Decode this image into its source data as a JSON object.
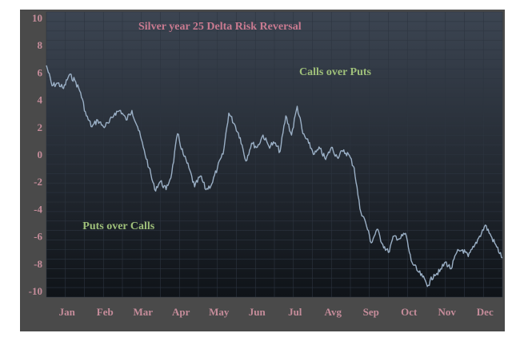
{
  "colors": {
    "frame": "#4a4a4a",
    "plot_top": "#3c4552",
    "plot_bottom": "#0f1318",
    "grid": "#2d3540",
    "series": "#9bb0c6",
    "tick_text": "#c58c9a",
    "title_text": "#c97a90",
    "annotation_text": "#9fc07a"
  },
  "chart_data": {
    "type": "line",
    "title": "Silver year  25 Delta Risk Reversal",
    "xlabel": "",
    "ylabel": "",
    "ylim": [
      -10,
      10
    ],
    "xlim": [
      0,
      12
    ],
    "grid": true,
    "yticks": [
      "10",
      "8",
      "6",
      "4",
      "2",
      "0",
      "-2",
      "-4",
      "-6",
      "-8",
      "-10"
    ],
    "ytick_values": [
      10,
      8,
      6,
      4,
      2,
      0,
      -2,
      -4,
      -6,
      -8,
      -10
    ],
    "xticks": [
      "Jan",
      "Feb",
      "Mar",
      "Apr",
      "May",
      "Jun",
      "Jul",
      "Avg",
      "Sep",
      "Oct",
      "Nov",
      "Dec"
    ],
    "annotations": [
      {
        "text": "Calls over Puts",
        "x": 7.6,
        "y": 5.8
      },
      {
        "text": "Puts over Calls",
        "x": 1.9,
        "y": -5.5
      }
    ],
    "series": [
      {
        "x": [
          0,
          0.15,
          0.3,
          0.45,
          0.6,
          0.75,
          0.9,
          1.05,
          1.2,
          1.35,
          1.5,
          1.65,
          1.8,
          1.95,
          2.1,
          2.25,
          2.4,
          2.55,
          2.7,
          2.85,
          3.0,
          3.15,
          3.3,
          3.45,
          3.6,
          3.75,
          3.9,
          4.05,
          4.2,
          4.35,
          4.5,
          4.65,
          4.8,
          4.95,
          5.1,
          5.25,
          5.4,
          5.55,
          5.7,
          5.85,
          6.0,
          6.15,
          6.3,
          6.45,
          6.6,
          6.75,
          6.9,
          7.05,
          7.2,
          7.35,
          7.5,
          7.65,
          7.8,
          7.95,
          8.1,
          8.25,
          8.4,
          8.55,
          8.7,
          8.85,
          9.0,
          9.15,
          9.3,
          9.45,
          9.6,
          9.75,
          9.9,
          10.05,
          10.2,
          10.35,
          10.5,
          10.65,
          10.8,
          10.95,
          11.1,
          11.25,
          11.4,
          11.55,
          11.7,
          11.85,
          12.0
        ],
        "values": [
          6.5,
          5.0,
          5.2,
          4.8,
          5.8,
          5.4,
          4.5,
          2.8,
          2.0,
          2.5,
          2.0,
          2.3,
          3.0,
          3.2,
          2.5,
          3.2,
          2.0,
          0.5,
          -1.0,
          -2.6,
          -2.0,
          -2.6,
          -1.4,
          1.5,
          0.0,
          -1.0,
          -2.4,
          -1.6,
          -2.6,
          -2.2,
          -1.0,
          0.0,
          3.0,
          2.2,
          1.2,
          -0.5,
          0.8,
          0.5,
          1.4,
          0.6,
          0.8,
          0.2,
          2.8,
          1.4,
          3.5,
          1.5,
          0.8,
          0.0,
          0.4,
          -0.4,
          0.5,
          -0.2,
          0.2,
          0.0,
          -1.0,
          -4.0,
          -5.0,
          -6.5,
          -5.5,
          -6.6,
          -7.2,
          -6.0,
          -6.2,
          -5.8,
          -7.8,
          -8.5,
          -9.0,
          -9.6,
          -8.8,
          -8.6,
          -7.9,
          -8.4,
          -7.2,
          -7.0,
          -7.5,
          -6.8,
          -6.0,
          -5.2,
          -6.0,
          -6.8,
          -7.6
        ]
      }
    ]
  }
}
